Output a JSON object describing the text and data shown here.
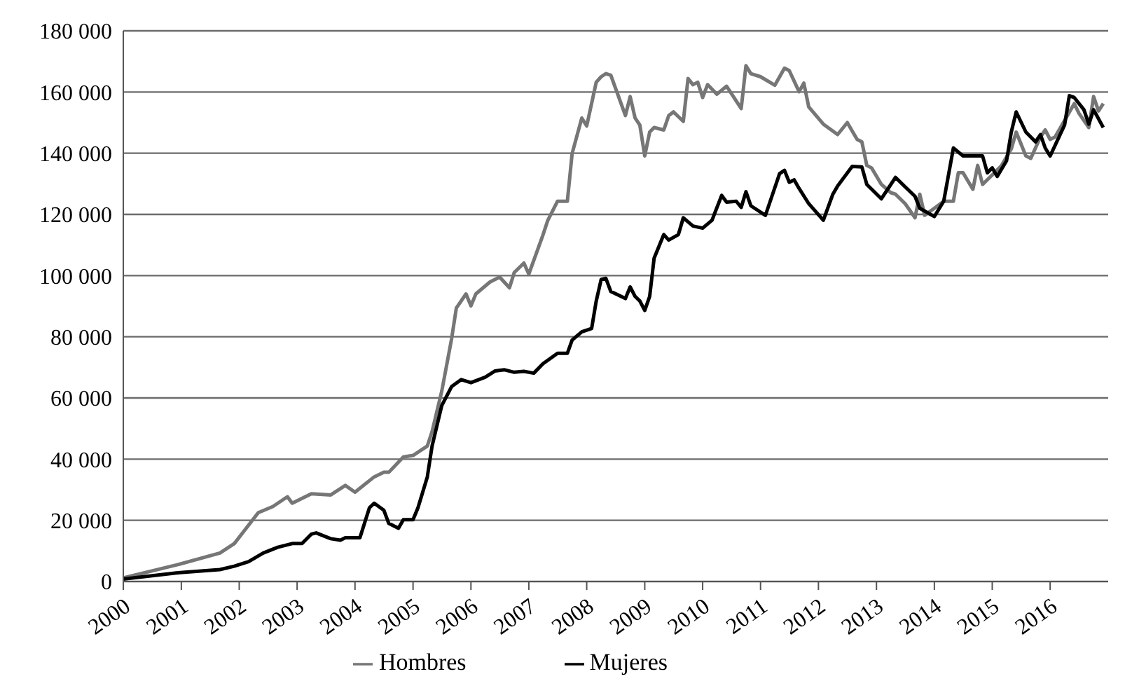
{
  "chart_data": {
    "type": "line",
    "xlim": [
      "2000-01",
      "2017-01"
    ],
    "xticks": [
      "2000",
      "2001",
      "2002",
      "2003",
      "2004",
      "2005",
      "2006",
      "2007",
      "2008",
      "2009",
      "2010",
      "2011",
      "2012",
      "2013",
      "2014",
      "2015",
      "2016"
    ],
    "ylim": [
      0,
      180000
    ],
    "yticks": [
      0,
      {
        "value": 20000,
        "label": "20 000"
      },
      {
        "value": 40000,
        "label": "40 000"
      },
      {
        "value": 60000,
        "label": "60 000"
      },
      {
        "value": 80000,
        "label": "80 000"
      },
      {
        "value": 100000,
        "label": "100 000"
      },
      {
        "value": 120000,
        "label": "120 000"
      },
      {
        "value": 140000,
        "label": "140 000"
      },
      {
        "value": 160000,
        "label": "160 000"
      },
      {
        "value": 180000,
        "label": "180 000"
      }
    ],
    "grid": "y",
    "legend": "bottom",
    "marker": "none",
    "line_style": "solid",
    "series": [
      {
        "name": "Hombres",
        "color": "#767676",
        "x": [
          "2000-01",
          "2000-12",
          "2001-09",
          "2001-12",
          "2002-05",
          "2002-08",
          "2002-11",
          "2002-12",
          "2003-04",
          "2003-08",
          "2003-11",
          "2004-01",
          "2004-05",
          "2004-07",
          "2004-08",
          "2004-11",
          "2005-01",
          "2005-04",
          "2005-05",
          "2005-07",
          "2005-09",
          "2005-10",
          "2005-12",
          "2006-01",
          "2006-02",
          "2006-05",
          "2006-07",
          "2006-09",
          "2006-10",
          "2006-12",
          "2007-01",
          "2007-04",
          "2007-05",
          "2007-07",
          "2007-09",
          "2007-10",
          "2007-12",
          "2008-01",
          "2008-03",
          "2008-04",
          "2008-05",
          "2008-06",
          "2008-09",
          "2008-10",
          "2008-11",
          "2008-12",
          "2009-01",
          "2009-02",
          "2009-03",
          "2009-05",
          "2009-06",
          "2009-07",
          "2009-09",
          "2009-10",
          "2009-11",
          "2009-12",
          "2010-01",
          "2010-02",
          "2010-04",
          "2010-06",
          "2010-09",
          "2010-10",
          "2010-11",
          "2011-01",
          "2011-04",
          "2011-06",
          "2011-07",
          "2011-09",
          "2011-10",
          "2011-11",
          "2012-02",
          "2012-05",
          "2012-07",
          "2012-09",
          "2012-10",
          "2012-11",
          "2012-12",
          "2013-02",
          "2013-04",
          "2013-05",
          "2013-07",
          "2013-09",
          "2013-10",
          "2013-11",
          "2014-01",
          "2014-03",
          "2014-05",
          "2014-06",
          "2014-07",
          "2014-09",
          "2014-10",
          "2014-11",
          "2015-01",
          "2015-03",
          "2015-05",
          "2015-06",
          "2015-08",
          "2015-09",
          "2015-11",
          "2015-12",
          "2016-01",
          "2016-02",
          "2016-04",
          "2016-06",
          "2016-07",
          "2016-09",
          "2016-10",
          "2016-11",
          "2016-12"
        ],
        "values": [
          1200,
          5400,
          9300,
          12400,
          22500,
          24500,
          27700,
          25600,
          28700,
          28300,
          31400,
          29200,
          34200,
          35700,
          35700,
          40700,
          41200,
          44300,
          49000,
          62200,
          79300,
          89400,
          94000,
          90100,
          94000,
          97900,
          99500,
          96000,
          101000,
          104100,
          100500,
          113400,
          118100,
          124300,
          124300,
          139900,
          151500,
          148900,
          163200,
          165000,
          166000,
          165500,
          152300,
          158500,
          151500,
          149200,
          139100,
          146900,
          148400,
          147600,
          152300,
          153500,
          150400,
          164400,
          162400,
          163200,
          158200,
          162400,
          159300,
          161900,
          154600,
          168600,
          166000,
          165000,
          162200,
          167800,
          167000,
          160100,
          162900,
          155100,
          149500,
          146100,
          150000,
          144500,
          143700,
          136000,
          135200,
          129800,
          127100,
          126600,
          123500,
          118900,
          126600,
          119700,
          122000,
          124300,
          124300,
          133600,
          133600,
          128200,
          136000,
          129800,
          132900,
          136000,
          141400,
          146900,
          139100,
          138300,
          145300,
          147600,
          144500,
          145300,
          150700,
          156200,
          153000,
          148400,
          158500,
          153800,
          156200
        ]
      },
      {
        "name": "Mujeres",
        "color": "#000000",
        "x": [
          "2000-01",
          "2000-12",
          "2001-09",
          "2001-12",
          "2002-03",
          "2002-06",
          "2002-09",
          "2002-12",
          "2003-02",
          "2003-04",
          "2003-05",
          "2003-08",
          "2003-10",
          "2003-11",
          "2004-02",
          "2004-04",
          "2004-05",
          "2004-07",
          "2004-08",
          "2004-10",
          "2004-11",
          "2005-01",
          "2005-02",
          "2005-04",
          "2005-05",
          "2005-07",
          "2005-09",
          "2005-11",
          "2006-01",
          "2006-04",
          "2006-06",
          "2006-08",
          "2006-10",
          "2006-12",
          "2007-02",
          "2007-04",
          "2007-07",
          "2007-09",
          "2007-10",
          "2007-12",
          "2008-02",
          "2008-03",
          "2008-04",
          "2008-05",
          "2008-06",
          "2008-09",
          "2008-10",
          "2008-11",
          "2008-12",
          "2009-01",
          "2009-02",
          "2009-03",
          "2009-05",
          "2009-06",
          "2009-08",
          "2009-09",
          "2009-11",
          "2010-01",
          "2010-03",
          "2010-05",
          "2010-06",
          "2010-08",
          "2010-09",
          "2010-10",
          "2010-11",
          "2011-02",
          "2011-05",
          "2011-06",
          "2011-07",
          "2011-08",
          "2011-09",
          "2011-11",
          "2012-02",
          "2012-04",
          "2012-05",
          "2012-08",
          "2012-10",
          "2012-11",
          "2013-02",
          "2013-05",
          "2013-07",
          "2013-09",
          "2013-10",
          "2014-01",
          "2014-03",
          "2014-05",
          "2014-07",
          "2014-11",
          "2014-12",
          "2015-01",
          "2015-02",
          "2015-04",
          "2015-05",
          "2015-06",
          "2015-08",
          "2015-10",
          "2015-11",
          "2015-12",
          "2016-01",
          "2016-04",
          "2016-05",
          "2016-06",
          "2016-08",
          "2016-09",
          "2016-10",
          "2016-12"
        ],
        "values": [
          800,
          2800,
          3900,
          5000,
          6500,
          9300,
          11200,
          12400,
          12400,
          15500,
          15900,
          14000,
          13500,
          14300,
          14300,
          24100,
          25600,
          23300,
          19000,
          17400,
          20200,
          20200,
          24100,
          34200,
          44300,
          57500,
          63700,
          66000,
          65000,
          66800,
          68800,
          69200,
          68400,
          68700,
          68100,
          71200,
          74600,
          74600,
          78900,
          81600,
          82700,
          91700,
          98700,
          99100,
          94800,
          92500,
          96300,
          93200,
          91700,
          88600,
          93200,
          105700,
          113400,
          111600,
          113400,
          118900,
          116200,
          115500,
          118100,
          126200,
          124000,
          124300,
          122300,
          127400,
          122800,
          119700,
          133300,
          134400,
          130500,
          131300,
          128500,
          123500,
          118100,
          126600,
          129300,
          135700,
          135500,
          129800,
          125100,
          132100,
          129000,
          125900,
          122000,
          119300,
          124300,
          141700,
          139100,
          139100,
          133600,
          135200,
          132400,
          137500,
          146900,
          153500,
          146900,
          143700,
          146100,
          141700,
          139100,
          149200,
          158800,
          158200,
          154200,
          149500,
          154200,
          148400
        ]
      }
    ]
  }
}
